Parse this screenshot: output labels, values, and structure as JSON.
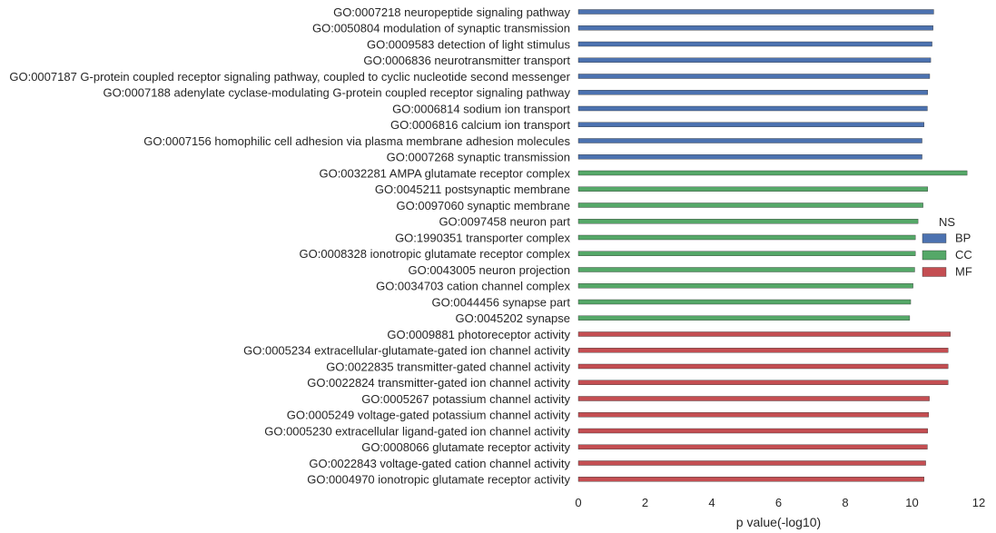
{
  "chart_data": {
    "type": "bar",
    "orientation": "horizontal",
    "xlabel": "p value(-log10)",
    "xlim": [
      0,
      12
    ],
    "xticks": [
      "0",
      "2",
      "4",
      "6",
      "8",
      "10",
      "12"
    ],
    "grid": false,
    "legend": {
      "title": "NS",
      "placement": "right",
      "entries": [
        {
          "name": "BP",
          "color": "#4c72b0"
        },
        {
          "name": "CC",
          "color": "#55a868"
        },
        {
          "name": "MF",
          "color": "#c44e52"
        }
      ]
    },
    "categories": [
      {
        "label": "GO:0007218 neuropeptide signaling pathway",
        "group": "BP",
        "value": 10.65
      },
      {
        "label": "GO:0050804 modulation of synaptic transmission",
        "group": "BP",
        "value": 10.63
      },
      {
        "label": "GO:0009583 detection of light stimulus",
        "group": "BP",
        "value": 10.6
      },
      {
        "label": "GO:0006836 neurotransmitter transport",
        "group": "BP",
        "value": 10.56
      },
      {
        "label": "GO:0007187 G-protein coupled receptor signaling pathway, coupled to cyclic nucleotide second messenger",
        "group": "BP",
        "value": 10.53
      },
      {
        "label": "GO:0007188 adenylate cyclase-modulating G-protein coupled receptor signaling pathway",
        "group": "BP",
        "value": 10.47
      },
      {
        "label": "GO:0006814 sodium ion transport",
        "group": "BP",
        "value": 10.46
      },
      {
        "label": "GO:0006816 calcium ion transport",
        "group": "BP",
        "value": 10.36
      },
      {
        "label": "GO:0007156 homophilic cell adhesion via plasma membrane adhesion molecules",
        "group": "BP",
        "value": 10.3
      },
      {
        "label": "GO:0007268 synaptic transmission",
        "group": "BP",
        "value": 10.3
      },
      {
        "label": "GO:0032281 AMPA glutamate receptor complex",
        "group": "CC",
        "value": 11.65
      },
      {
        "label": "GO:0045211 postsynaptic membrane",
        "group": "CC",
        "value": 10.47
      },
      {
        "label": "GO:0097060 synaptic membrane",
        "group": "CC",
        "value": 10.33
      },
      {
        "label": "GO:0097458 neuron part",
        "group": "CC",
        "value": 10.18
      },
      {
        "label": "GO:1990351 transporter complex",
        "group": "CC",
        "value": 10.1
      },
      {
        "label": "GO:0008328 ionotropic glutamate receptor complex",
        "group": "CC",
        "value": 10.1
      },
      {
        "label": "GO:0043005 neuron projection",
        "group": "CC",
        "value": 10.08
      },
      {
        "label": "GO:0034703 cation channel complex",
        "group": "CC",
        "value": 10.03
      },
      {
        "label": "GO:0044456 synapse part",
        "group": "CC",
        "value": 9.96
      },
      {
        "label": "GO:0045202 synapse",
        "group": "CC",
        "value": 9.93
      },
      {
        "label": "GO:0009881 photoreceptor activity",
        "group": "MF",
        "value": 11.15
      },
      {
        "label": "GO:0005234 extracellular-glutamate-gated ion channel activity",
        "group": "MF",
        "value": 11.08
      },
      {
        "label": "GO:0022835 transmitter-gated channel activity",
        "group": "MF",
        "value": 11.08
      },
      {
        "label": "GO:0022824 transmitter-gated ion channel activity",
        "group": "MF",
        "value": 11.08
      },
      {
        "label": "GO:0005267 potassium channel activity",
        "group": "MF",
        "value": 10.52
      },
      {
        "label": "GO:0005249 voltage-gated potassium channel activity",
        "group": "MF",
        "value": 10.5
      },
      {
        "label": "GO:0005230 extracellular ligand-gated ion channel activity",
        "group": "MF",
        "value": 10.47
      },
      {
        "label": "GO:0008066 glutamate receptor activity",
        "group": "MF",
        "value": 10.46
      },
      {
        "label": "GO:0022843 voltage-gated cation channel activity",
        "group": "MF",
        "value": 10.41
      },
      {
        "label": "GO:0004970 ionotropic glutamate receptor activity",
        "group": "MF",
        "value": 10.36
      }
    ]
  }
}
